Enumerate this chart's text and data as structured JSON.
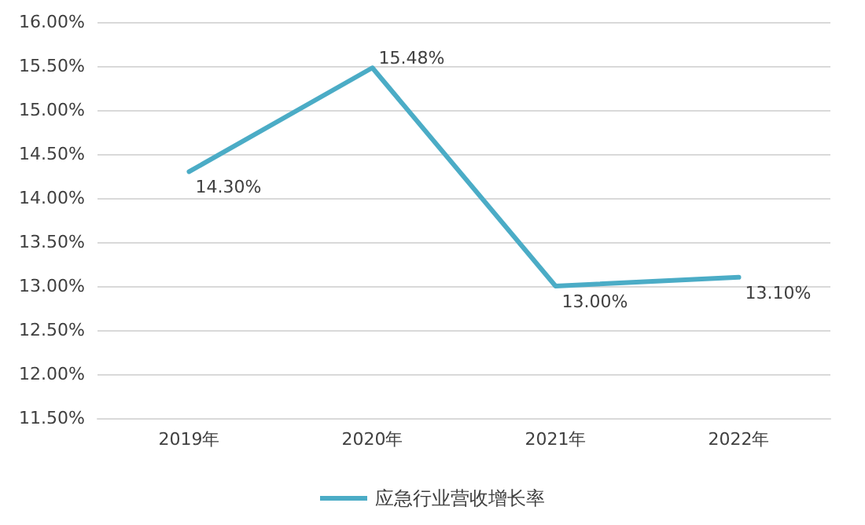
{
  "chart_data": {
    "type": "line",
    "categories": [
      "2019年",
      "2020年",
      "2021年",
      "2022年"
    ],
    "series": [
      {
        "name": "应急行业营收增长率",
        "color": "#4bacc6",
        "values": [
          14.3,
          15.48,
          13.0,
          13.1
        ],
        "value_labels": [
          "14.30%",
          "15.48%",
          "13.00%",
          "13.10%"
        ]
      }
    ],
    "ylim": [
      11.5,
      16
    ],
    "yticks": [
      {
        "value": 11.5,
        "label": "11.50%"
      },
      {
        "value": 12,
        "label": "12.00%"
      },
      {
        "value": 12.5,
        "label": "12.50%"
      },
      {
        "value": 13,
        "label": "13.00%"
      },
      {
        "value": 13.5,
        "label": "13.50%"
      },
      {
        "value": 14,
        "label": "14.00%"
      },
      {
        "value": 14.5,
        "label": "14.50%"
      },
      {
        "value": 15,
        "label": "15.00%"
      },
      {
        "value": 15.5,
        "label": "15.50%"
      },
      {
        "value": 16,
        "label": "16.00%"
      }
    ],
    "grid": "y",
    "legend": "bottom",
    "marker": "none",
    "line_style": "solid"
  }
}
